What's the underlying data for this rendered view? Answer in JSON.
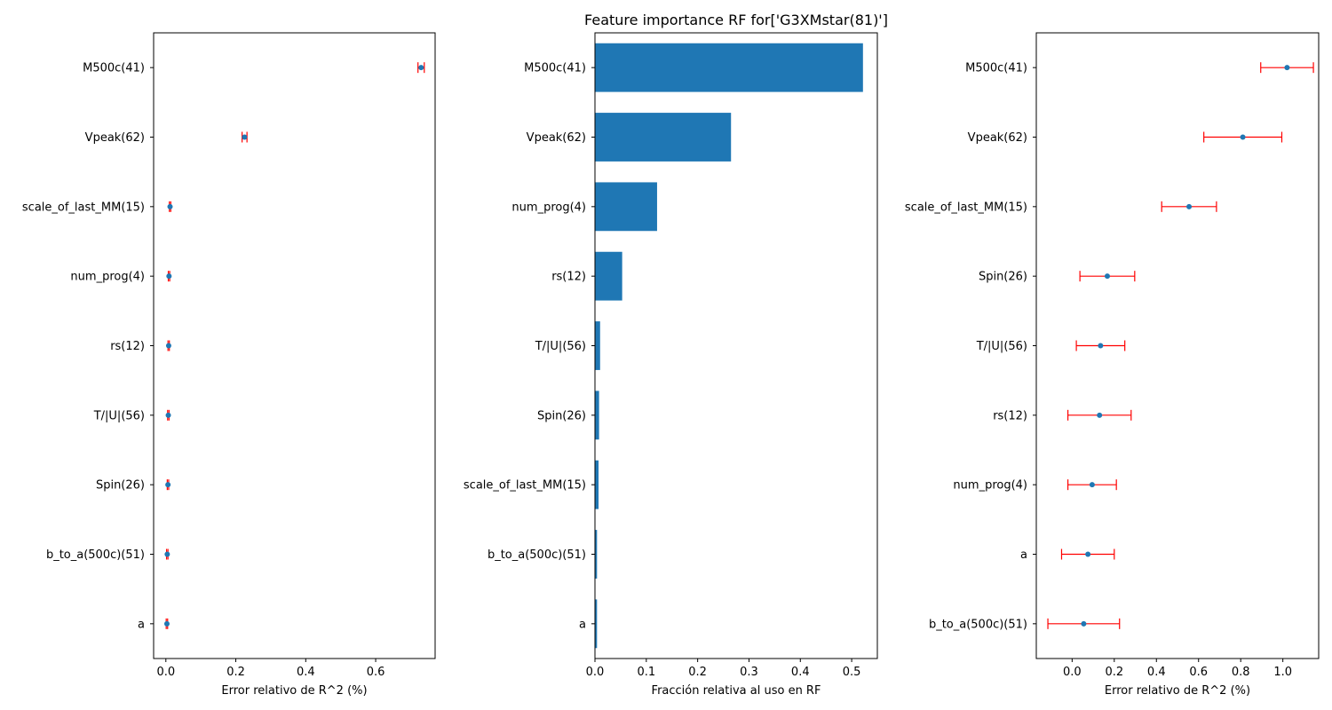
{
  "title": "Feature importance RF for['G3XMstar(81)']",
  "colors": {
    "marker": "#1f77b4",
    "bar": "#1f77b4",
    "error": "#ff0000",
    "axes": "#000000"
  },
  "chart_data": [
    {
      "type": "scatter",
      "xlabel": "Error relativo de R^2 (%)",
      "xlim": [
        -0.035,
        0.77
      ],
      "xticks": [
        0.0,
        0.2,
        0.4,
        0.6
      ],
      "xtick_labels": [
        "0.0",
        "0.2",
        "0.4",
        "0.6"
      ],
      "grid": false,
      "categories": [
        "M500c(41)",
        "Vpeak(62)",
        "scale_of_last_MM(15)",
        "num_prog(4)",
        "rs(12)",
        "T/|U|(56)",
        "Spin(26)",
        "b_to_a(500c)(51)",
        "a"
      ],
      "values": [
        0.73,
        0.225,
        0.012,
        0.009,
        0.008,
        0.007,
        0.006,
        0.004,
        0.003
      ],
      "errors": [
        0.009,
        0.007,
        0.002,
        0.002,
        0.002,
        0.002,
        0.002,
        0.002,
        0.002
      ]
    },
    {
      "type": "bar",
      "orientation": "horizontal",
      "xlabel": "Fracción relativa al uso en RF",
      "xlim": [
        0,
        0.55
      ],
      "xticks": [
        0.0,
        0.1,
        0.2,
        0.3,
        0.4,
        0.5
      ],
      "xtick_labels": [
        "0.0",
        "0.1",
        "0.2",
        "0.3",
        "0.4",
        "0.5"
      ],
      "grid": false,
      "categories": [
        "M500c(41)",
        "Vpeak(62)",
        "num_prog(4)",
        "rs(12)",
        "T/|U|(56)",
        "Spin(26)",
        "scale_of_last_MM(15)",
        "b_to_a(500c)(51)",
        "a"
      ],
      "values": [
        0.522,
        0.265,
        0.121,
        0.053,
        0.01,
        0.008,
        0.007,
        0.004,
        0.004
      ]
    },
    {
      "type": "scatter",
      "xlabel": "Error relativo de R^2 (%)",
      "xlim": [
        -0.17,
        1.17
      ],
      "xticks": [
        0.0,
        0.2,
        0.4,
        0.6,
        0.8,
        1.0
      ],
      "xtick_labels": [
        "0.0",
        "0.2",
        "0.4",
        "0.6",
        "0.8",
        "1.0"
      ],
      "grid": false,
      "categories": [
        "M500c(41)",
        "Vpeak(62)",
        "scale_of_last_MM(15)",
        "Spin(26)",
        "T/|U|(56)",
        "rs(12)",
        "num_prog(4)",
        "a",
        "b_to_a(500c)(51)"
      ],
      "values": [
        1.02,
        0.81,
        0.555,
        0.167,
        0.135,
        0.13,
        0.095,
        0.075,
        0.055
      ],
      "errors": [
        0.125,
        0.185,
        0.13,
        0.13,
        0.115,
        0.15,
        0.115,
        0.125,
        0.17
      ]
    }
  ]
}
